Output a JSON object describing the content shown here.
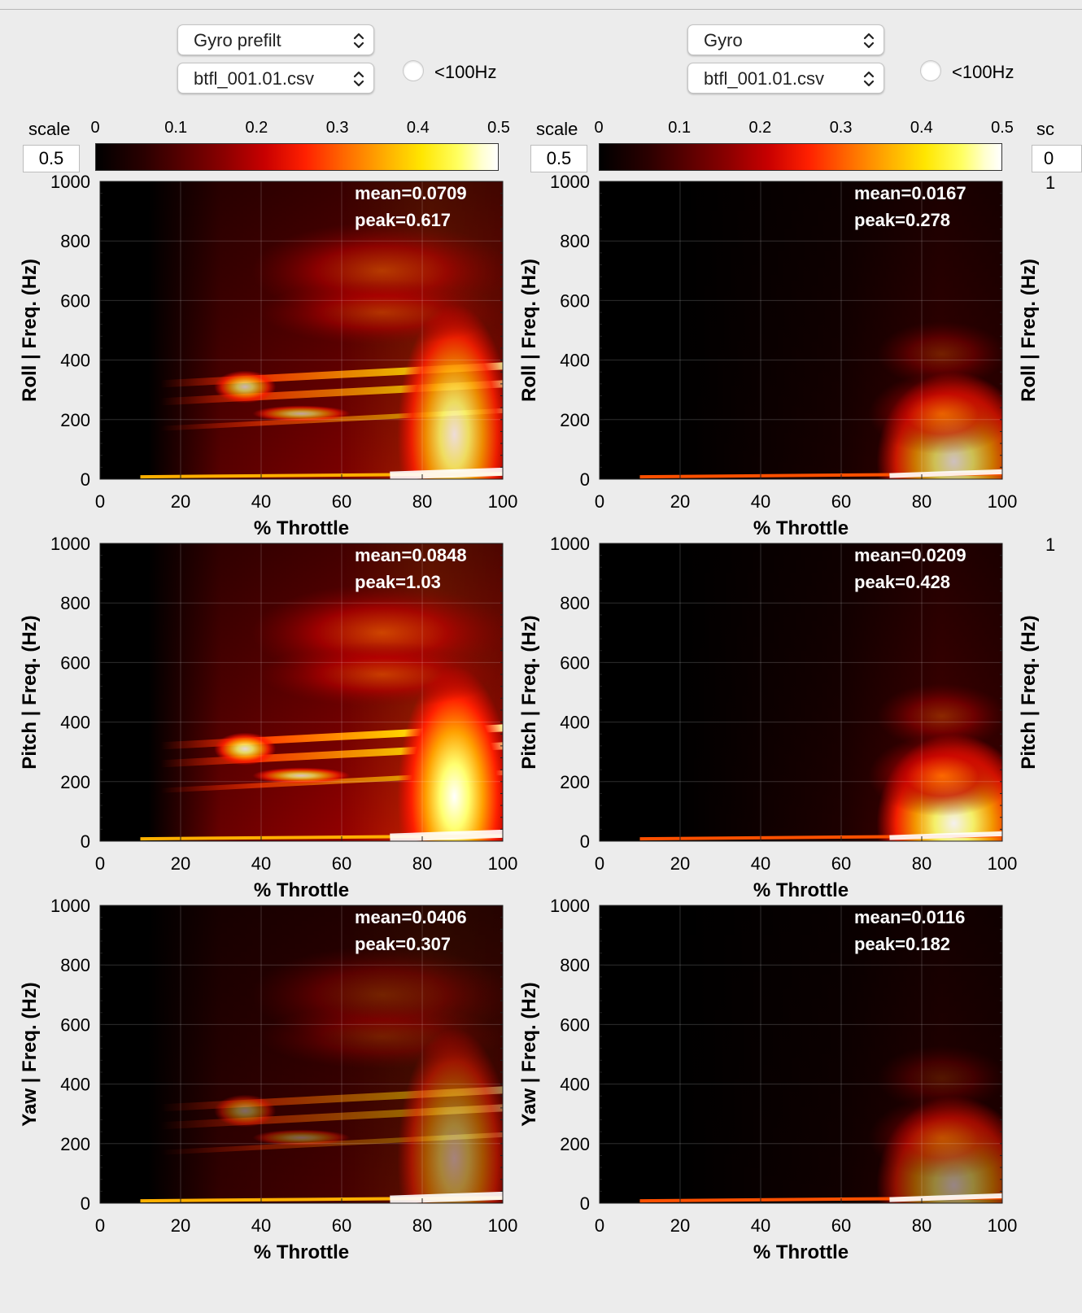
{
  "left": {
    "sensor_select": "Gyro prefilt",
    "file_select": "btfl_001.01.csv",
    "filter_label": "<100Hz",
    "scale_label": "scale",
    "scale_value": "0.5"
  },
  "right": {
    "sensor_select": "Gyro",
    "file_select": "btfl_001.01.csv",
    "filter_label": "<100Hz",
    "scale_label": "scale",
    "scale_value": "0.5"
  },
  "colorbar": {
    "ticks": [
      "0",
      "0.1",
      "0.2",
      "0.3",
      "0.4",
      "0.5"
    ],
    "colormap": "hot",
    "range": [
      0,
      0.5
    ]
  },
  "chart_data": [
    {
      "type": "heatmap",
      "panel": "left-roll",
      "xlabel": "% Throttle",
      "ylabel": "Roll  |  Freq. (Hz)",
      "xlim": [
        0,
        100
      ],
      "ylim": [
        0,
        1000
      ],
      "x_ticks": [
        "0",
        "20",
        "40",
        "60",
        "80",
        "100"
      ],
      "y_ticks": [
        "0",
        "200",
        "400",
        "600",
        "800",
        "1000"
      ],
      "stats": [
        "mean=0.0709",
        "peak=0.617"
      ],
      "intensity": 0.0709
    },
    {
      "type": "heatmap",
      "panel": "right-roll",
      "xlabel": "% Throttle",
      "ylabel": "Roll  |  Freq. (Hz)",
      "xlim": [
        0,
        100
      ],
      "ylim": [
        0,
        1000
      ],
      "x_ticks": [
        "0",
        "20",
        "40",
        "60",
        "80",
        "100"
      ],
      "y_ticks": [
        "0",
        "200",
        "400",
        "600",
        "800",
        "1000"
      ],
      "stats": [
        "mean=0.0167",
        "peak=0.278"
      ],
      "intensity": 0.0167
    },
    {
      "type": "heatmap",
      "panel": "left-pitch",
      "xlabel": "% Throttle",
      "ylabel": "Pitch  |  Freq. (Hz)",
      "xlim": [
        0,
        100
      ],
      "ylim": [
        0,
        1000
      ],
      "x_ticks": [
        "0",
        "20",
        "40",
        "60",
        "80",
        "100"
      ],
      "y_ticks": [
        "0",
        "200",
        "400",
        "600",
        "800",
        "1000"
      ],
      "stats": [
        "mean=0.0848",
        "peak=1.03"
      ],
      "intensity": 0.0848
    },
    {
      "type": "heatmap",
      "panel": "right-pitch",
      "xlabel": "% Throttle",
      "ylabel": "Pitch  |  Freq. (Hz)",
      "xlim": [
        0,
        100
      ],
      "ylim": [
        0,
        1000
      ],
      "x_ticks": [
        "0",
        "20",
        "40",
        "60",
        "80",
        "100"
      ],
      "y_ticks": [
        "0",
        "200",
        "400",
        "600",
        "800",
        "1000"
      ],
      "stats": [
        "mean=0.0209",
        "peak=0.428"
      ],
      "intensity": 0.0209
    },
    {
      "type": "heatmap",
      "panel": "left-yaw",
      "xlabel": "% Throttle",
      "ylabel": "Yaw  |  Freq. (Hz)",
      "xlim": [
        0,
        100
      ],
      "ylim": [
        0,
        1000
      ],
      "x_ticks": [
        "0",
        "20",
        "40",
        "60",
        "80",
        "100"
      ],
      "y_ticks": [
        "0",
        "200",
        "400",
        "600",
        "800",
        "1000"
      ],
      "stats": [
        "mean=0.0406",
        "peak=0.307"
      ],
      "intensity": 0.0406
    },
    {
      "type": "heatmap",
      "panel": "right-yaw",
      "xlabel": "% Throttle",
      "ylabel": "Yaw  |  Freq. (Hz)",
      "xlim": [
        0,
        100
      ],
      "ylim": [
        0,
        1000
      ],
      "x_ticks": [
        "0",
        "20",
        "40",
        "60",
        "80",
        "100"
      ],
      "y_ticks": [
        "0",
        "200",
        "400",
        "600",
        "800",
        "1000"
      ],
      "stats": [
        "mean=0.0116",
        "peak=0.182"
      ],
      "intensity": 0.0116
    }
  ],
  "cut_off": {
    "scale_label": "sc",
    "scale_value": "0",
    "tick_1": "1",
    "ylabels": [
      "Roll  |  Freq. (Hz)",
      "Pitch  |  Freq. (Hz)"
    ]
  }
}
